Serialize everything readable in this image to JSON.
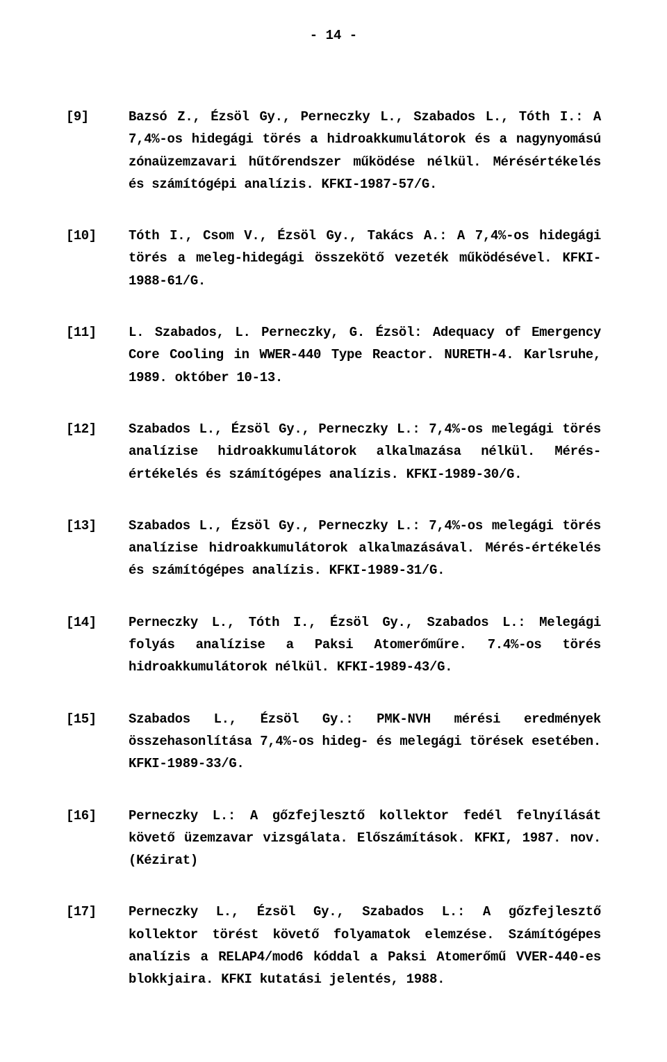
{
  "page_number": "- 14 -",
  "font_family": "Courier New",
  "font_size_pt": 14,
  "background_color": "#ffffff",
  "text_color": "#000000",
  "references": [
    {
      "num": "[9]",
      "body": "Bazsó Z., Ézsöl Gy., Perneczky L., Szabados L., Tóth I.: A 7,4%-os hidegági törés a hidroakkumulátorok és a nagynyomású zónaüzemzavari hűtőrendszer működése nélkül. Mérésértékelés és számítógépi analízis. KFKI-1987-57/G."
    },
    {
      "num": "[10]",
      "body": "Tóth I., Csom V., Ézsöl Gy., Takács A.: A 7,4%-os hidegági törés a meleg-hidegági összekötő vezeték működésével. KFKI-1988-61/G."
    },
    {
      "num": "[11]",
      "body": "L. Szabados, L. Perneczky, G. Ézsöl: Adequacy of Emergency Core Cooling in WWER-440 Type Reactor. NURETH-4. Karlsruhe, 1989. október 10-13."
    },
    {
      "num": "[12]",
      "body": "Szabados L., Ézsöl Gy., Perneczky L.: 7,4%-os melegági törés analízise hidroakkumulátorok alkalmazása nélkül. Mérés-értékelés és számítógépes analízis. KFKI-1989-30/G."
    },
    {
      "num": "[13]",
      "body": "Szabados L., Ézsöl Gy., Perneczky L.: 7,4%-os melegági törés analízise hidroakkumulátorok alkalmazásával. Mérés-értékelés és számítógépes analízis. KFKI-1989-31/G."
    },
    {
      "num": "[14]",
      "body": "Perneczky L., Tóth I., Ézsöl Gy., Szabados L.: Melegági folyás analízise a Paksi Atomerőműre. 7.4%-os törés hidroakkumulátorok nélkül. KFKI-1989-43/G."
    },
    {
      "num": "[15]",
      "body": "Szabados L., Ézsöl Gy.: PMK-NVH mérési eredmények összehasonlítása 7,4%-os hideg- és melegági törések esetében. KFKI-1989-33/G."
    },
    {
      "num": "[16]",
      "body": "Perneczky L.: A gőzfejlesztő kollektor fedél felnyílását követő üzemzavar vizsgálata. Előszámítások. KFKI, 1987. nov. (Kézirat)"
    },
    {
      "num": "[17]",
      "body": "Perneczky L., Ézsöl Gy., Szabados L.: A gőzfejlesztő kollektor törést követő folyamatok elemzése. Számítógépes analízis a RELAP4/mod6 kóddal a Paksi Atomerőmű VVER-440-es blokkjaira. KFKI kutatási jelentés, 1988."
    }
  ]
}
